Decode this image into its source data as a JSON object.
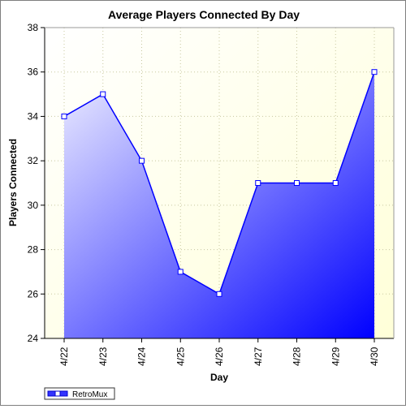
{
  "chart_data": {
    "type": "area",
    "title": "Average Players Connected By Day",
    "xlabel": "Day",
    "ylabel": "Players Connected",
    "categories": [
      "4/22",
      "4/23",
      "4/24",
      "4/25",
      "4/26",
      "4/27",
      "4/28",
      "4/29",
      "4/30"
    ],
    "series": [
      {
        "name": "RetroMux",
        "values": [
          34,
          35,
          32,
          27,
          26,
          31,
          31,
          31,
          36
        ]
      }
    ],
    "ylim": [
      24,
      38
    ],
    "yticks": [
      "24",
      "26",
      "28",
      "30",
      "32",
      "34",
      "36",
      "38"
    ],
    "grid": true,
    "legend_position": "bottom-left",
    "colors": {
      "plot_background_top": "#fefede",
      "plot_background_right": "#ffffdc",
      "area_gradient_start": "#eeeeff",
      "area_gradient_end": "#0000ff",
      "line": "#0000ff",
      "marker_fill": "#ffffff",
      "grid": "#c8c8a0",
      "axis": "#000000"
    }
  }
}
